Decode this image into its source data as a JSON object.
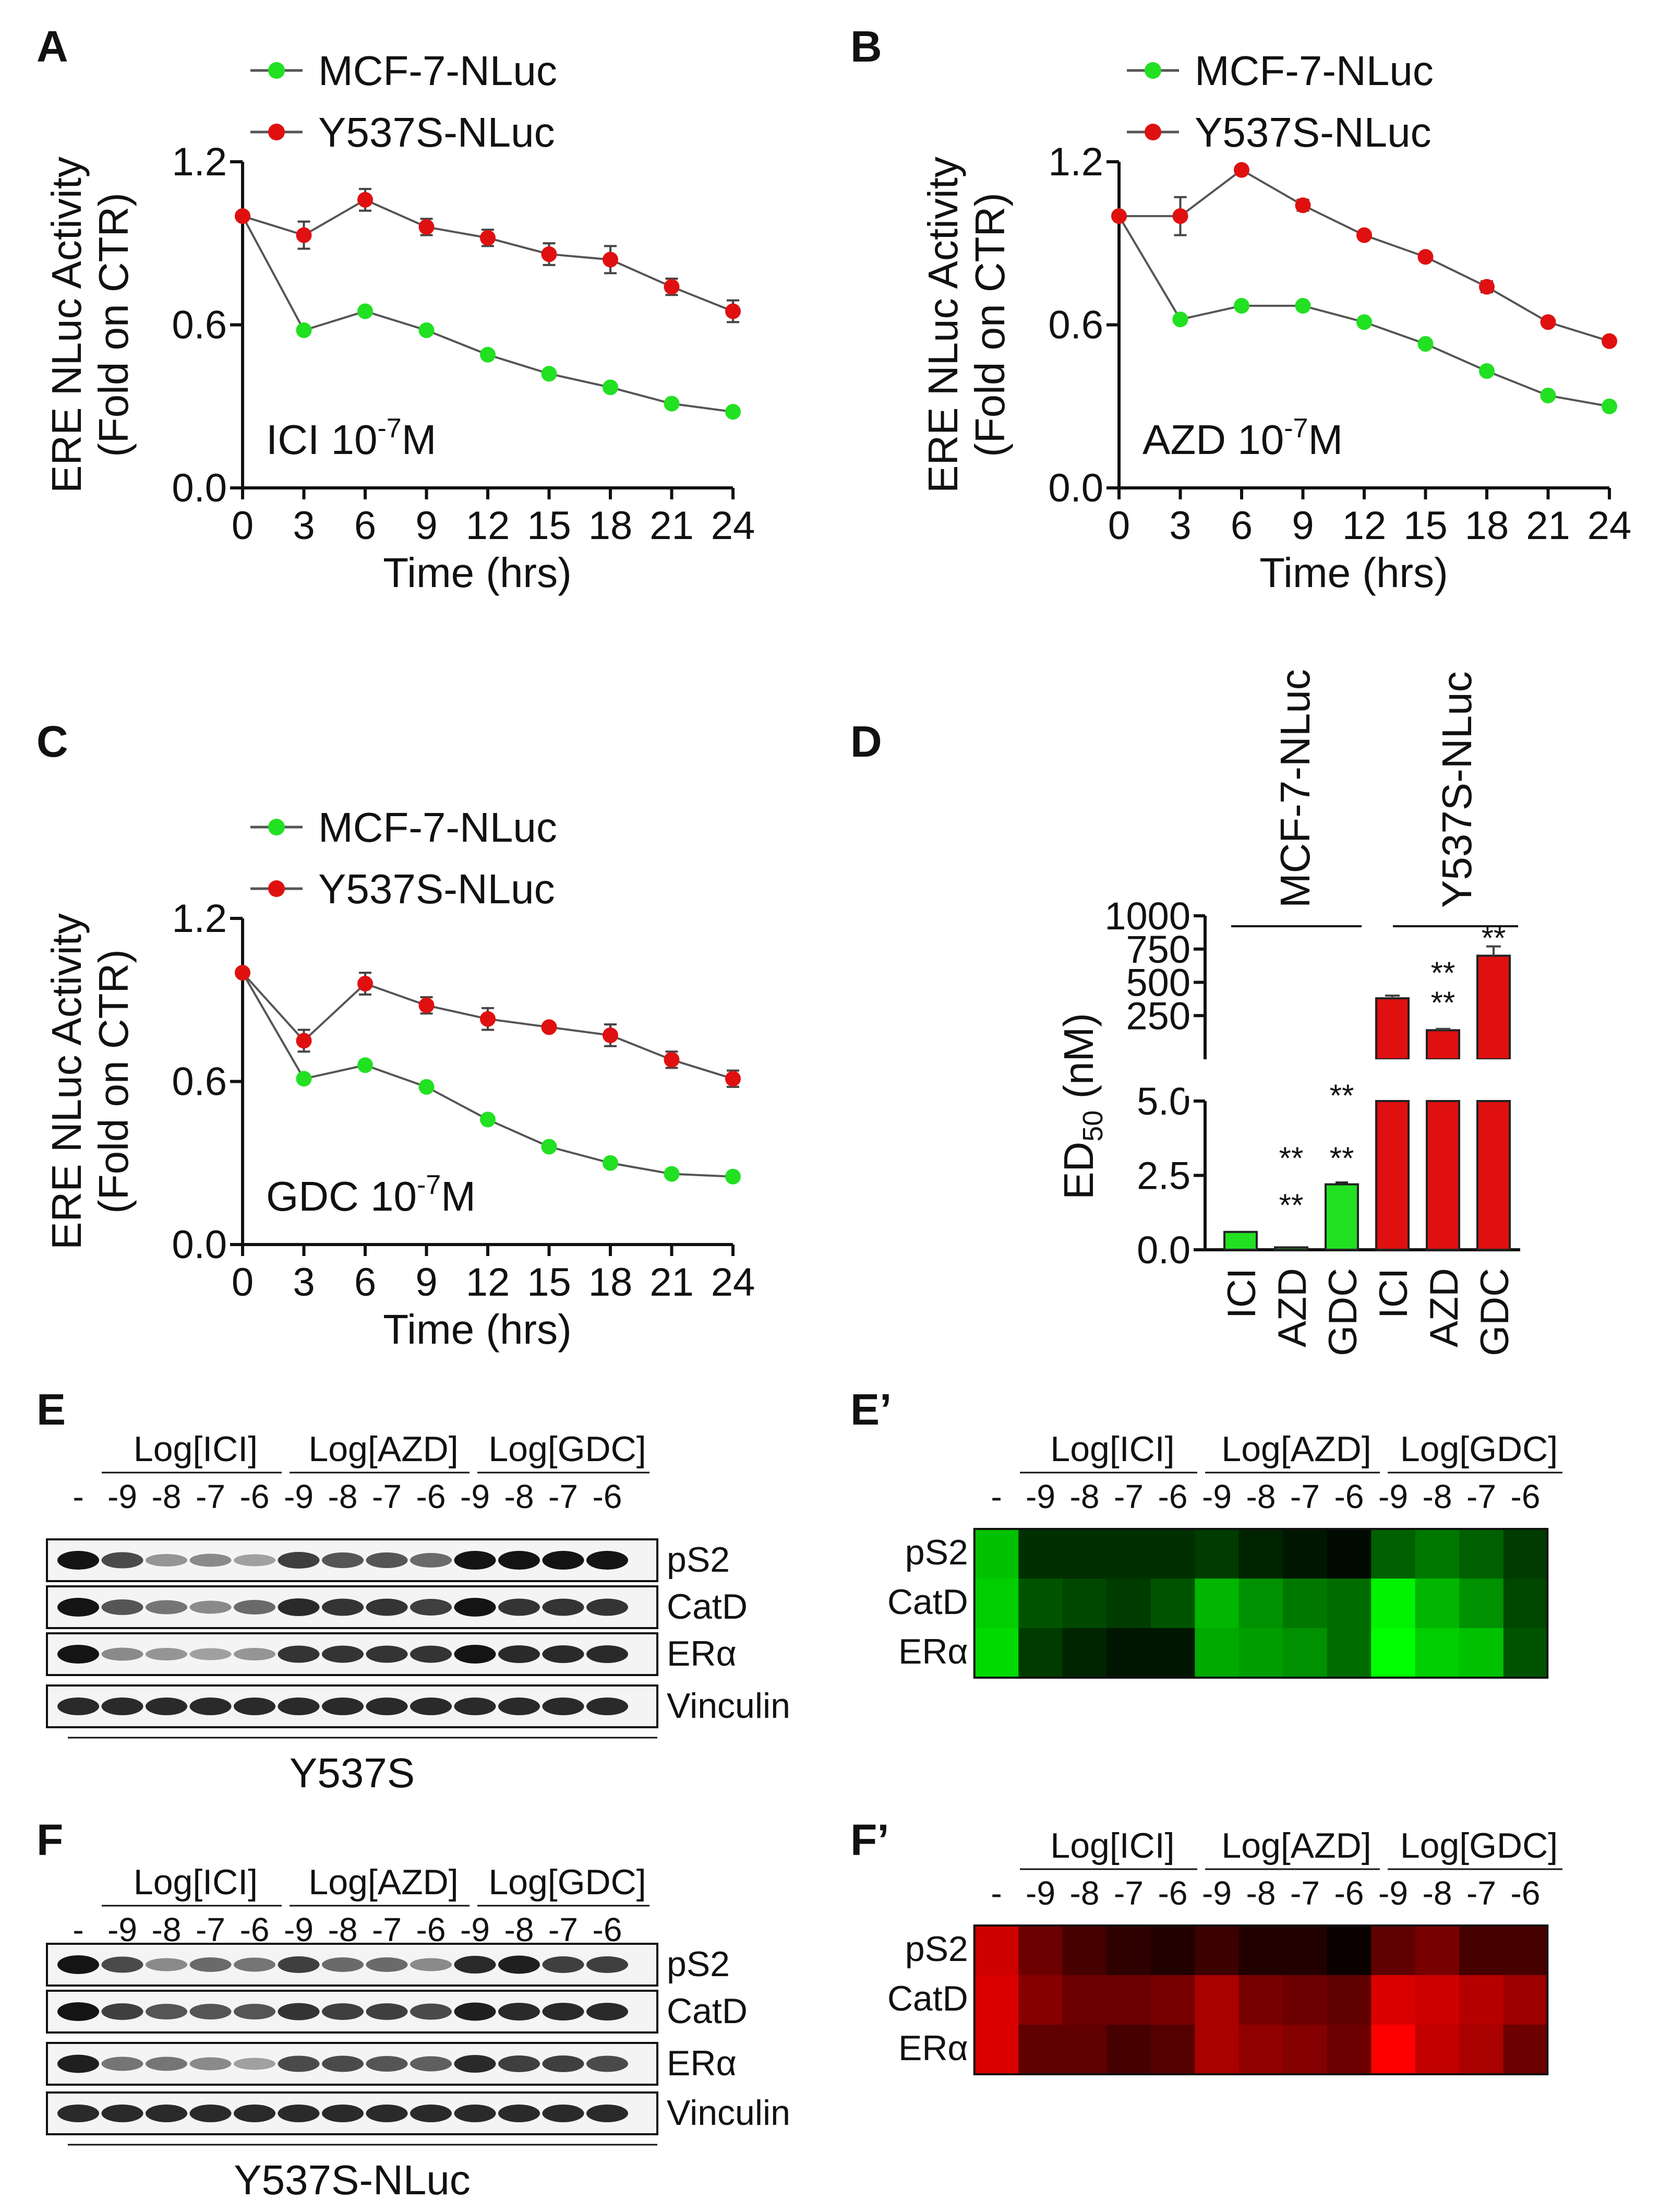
{
  "panel_letters": {
    "A": "A",
    "B": "B",
    "C": "C",
    "D": "D",
    "E": "E",
    "Ep": "E’",
    "F": "F",
    "Fp": "F’"
  },
  "colors": {
    "mcf7": "#22e022",
    "y537s": "#e01010",
    "line": "#555555",
    "axis": "#111111"
  },
  "chart_data": [
    {
      "id": "A",
      "type": "line",
      "ylabel_line1": "ERE NLuc Activity",
      "ylabel_line2": "(Fold on CTR)",
      "xlabel": "Time  (hrs)",
      "annotation": "ICI 10",
      "annotation_exp": "-7",
      "annotation_unit": "M",
      "x": [
        0,
        3,
        6,
        9,
        12,
        15,
        18,
        21,
        24
      ],
      "xticks": [
        "0",
        "3",
        "6",
        "9",
        "12",
        "15",
        "18",
        "21",
        "24"
      ],
      "ylim": [
        0,
        1.2
      ],
      "yticks": [
        "0.0",
        "0.6",
        "1.2"
      ],
      "series": [
        {
          "name": "MCF-7-NLuc",
          "values": [
            1.0,
            0.58,
            0.65,
            0.58,
            0.49,
            0.42,
            0.37,
            0.31,
            0.28
          ],
          "errors": [
            0,
            0.01,
            0.01,
            0.01,
            0.01,
            0.01,
            0.01,
            0.01,
            0.01
          ]
        },
        {
          "name": "Y537S-NLuc",
          "values": [
            1.0,
            0.93,
            1.06,
            0.96,
            0.92,
            0.86,
            0.84,
            0.74,
            0.65
          ],
          "errors": [
            0,
            0.05,
            0.04,
            0.03,
            0.03,
            0.04,
            0.05,
            0.03,
            0.04
          ]
        }
      ]
    },
    {
      "id": "B",
      "type": "line",
      "ylabel_line1": "ERE NLuc Activity",
      "ylabel_line2": "(Fold on CTR)",
      "xlabel": "Time  (hrs)",
      "annotation": "AZD 10",
      "annotation_exp": "-7",
      "annotation_unit": "M",
      "x": [
        0,
        3,
        6,
        9,
        12,
        15,
        18,
        21,
        24
      ],
      "xticks": [
        "0",
        "3",
        "6",
        "9",
        "12",
        "15",
        "18",
        "21",
        "24"
      ],
      "ylim": [
        0,
        1.2
      ],
      "yticks": [
        "0.0",
        "0.6",
        "1.2"
      ],
      "series": [
        {
          "name": "MCF-7-NLuc",
          "values": [
            1.0,
            0.62,
            0.67,
            0.67,
            0.61,
            0.53,
            0.43,
            0.34,
            0.3
          ],
          "errors": [
            0,
            0.01,
            0.01,
            0.01,
            0.01,
            0.01,
            0.01,
            0.01,
            0.01
          ]
        },
        {
          "name": "Y537S-NLuc",
          "values": [
            1.0,
            1.0,
            1.17,
            1.04,
            0.93,
            0.85,
            0.74,
            0.61,
            0.54
          ],
          "errors": [
            0,
            0.07,
            0.01,
            0.02,
            0.01,
            0.01,
            0.02,
            0.01,
            0.01
          ]
        }
      ]
    },
    {
      "id": "C",
      "type": "line",
      "ylabel_line1": "ERE NLuc Activity",
      "ylabel_line2": "(Fold on CTR)",
      "xlabel": "Time  (hrs)",
      "annotation": "GDC 10",
      "annotation_exp": "-7",
      "annotation_unit": "M",
      "x": [
        0,
        3,
        6,
        9,
        12,
        15,
        18,
        21,
        24
      ],
      "xticks": [
        "0",
        "3",
        "6",
        "9",
        "12",
        "15",
        "18",
        "21",
        "24"
      ],
      "ylim": [
        0,
        1.2
      ],
      "yticks": [
        "0.0",
        "0.6",
        "1.2"
      ],
      "series": [
        {
          "name": "MCF-7-NLuc",
          "values": [
            1.0,
            0.61,
            0.66,
            0.58,
            0.46,
            0.36,
            0.3,
            0.26,
            0.25
          ],
          "errors": [
            0,
            0.01,
            0.01,
            0.01,
            0.01,
            0.01,
            0.01,
            0.01,
            0.01
          ]
        },
        {
          "name": "Y537S-NLuc",
          "values": [
            1.0,
            0.75,
            0.96,
            0.88,
            0.83,
            0.8,
            0.77,
            0.68,
            0.61
          ],
          "errors": [
            0,
            0.04,
            0.04,
            0.03,
            0.04,
            0.01,
            0.04,
            0.03,
            0.03
          ]
        }
      ]
    },
    {
      "id": "D",
      "type": "bar",
      "ylabel": "ED",
      "ylabel_sub": "50",
      "ylabel_unit": " (nM)",
      "categories": [
        "ICI",
        "AZD",
        "GDC",
        "ICI",
        "AZD",
        "GDC"
      ],
      "groups": [
        "MCF-7-NLuc",
        "MCF-7-NLuc",
        "MCF-7-NLuc",
        "Y537S-NLuc",
        "Y537S-NLuc",
        "Y537S-NLuc"
      ],
      "group_labels": [
        "MCF-7-NLuc",
        "Y537S-NLuc"
      ],
      "values": [
        0.6,
        0.08,
        2.2,
        380,
        140,
        700
      ],
      "errors": [
        0.02,
        0.02,
        0.06,
        20,
        10,
        70
      ],
      "significance": [
        [
          "",
          ""
        ],
        [
          "**",
          "**"
        ],
        [
          "**",
          "**"
        ],
        [
          "",
          ""
        ],
        [
          "**",
          "**"
        ],
        [
          "",
          ""
        ]
      ],
      "significance_top": [
        "",
        "",
        "",
        "",
        "",
        "**"
      ],
      "lower_axis": {
        "ylim": [
          0,
          5
        ],
        "yticks": [
          "0.0",
          "2.5",
          "5.0"
        ]
      },
      "upper_axis": {
        "ylim": [
          0,
          1000
        ],
        "yticks": [
          "250",
          "500",
          "750",
          "1000"
        ]
      }
    }
  ],
  "blots": {
    "E": {
      "groups": [
        "Log[ICI]",
        "Log[AZD]",
        "Log[GDC]"
      ],
      "lanes": [
        "-",
        "-9",
        "-8",
        "-7",
        "-6",
        "-9",
        "-8",
        "-7",
        "-6",
        "-9",
        "-8",
        "-7",
        "-6"
      ],
      "proteins": [
        "pS2",
        "CatD",
        "ERα",
        "Vinculin"
      ],
      "caption": "Y537S",
      "intensity": [
        [
          1.0,
          0.75,
          0.4,
          0.45,
          0.35,
          0.8,
          0.7,
          0.7,
          0.6,
          1.0,
          1.0,
          1.0,
          1.0
        ],
        [
          1.0,
          0.7,
          0.55,
          0.45,
          0.6,
          0.9,
          0.85,
          0.85,
          0.8,
          1.0,
          0.85,
          0.85,
          0.85
        ],
        [
          1.0,
          0.45,
          0.4,
          0.35,
          0.4,
          0.85,
          0.85,
          0.85,
          0.85,
          1.0,
          0.9,
          0.9,
          0.9
        ],
        [
          0.9,
          0.9,
          0.9,
          0.9,
          0.9,
          0.9,
          0.9,
          0.9,
          0.9,
          0.9,
          0.9,
          0.9,
          0.9
        ]
      ]
    },
    "F": {
      "groups": [
        "Log[ICI]",
        "Log[AZD]",
        "Log[GDC]"
      ],
      "lanes": [
        "-",
        "-9",
        "-8",
        "-7",
        "-6",
        "-9",
        "-8",
        "-7",
        "-6",
        "-9",
        "-8",
        "-7",
        "-6"
      ],
      "proteins": [
        "pS2",
        "CatD",
        "ERα",
        "Vinculin"
      ],
      "caption": "Y537S-NLuc",
      "intensity": [
        [
          1.0,
          0.75,
          0.45,
          0.6,
          0.55,
          0.8,
          0.6,
          0.6,
          0.45,
          0.9,
          0.95,
          0.8,
          0.8
        ],
        [
          1.0,
          0.8,
          0.7,
          0.7,
          0.7,
          0.85,
          0.8,
          0.8,
          0.75,
          0.95,
          0.9,
          0.9,
          0.9
        ],
        [
          0.95,
          0.55,
          0.55,
          0.45,
          0.35,
          0.75,
          0.75,
          0.7,
          0.65,
          0.9,
          0.8,
          0.8,
          0.75
        ],
        [
          0.9,
          0.9,
          0.9,
          0.9,
          0.9,
          0.9,
          0.9,
          0.9,
          0.9,
          0.9,
          0.9,
          0.9,
          0.9
        ]
      ]
    }
  },
  "heatmaps": {
    "Ep": {
      "color": "green",
      "groups": [
        "Log[ICI]",
        "Log[AZD]",
        "Log[GDC]"
      ],
      "lanes": [
        "-",
        "-9",
        "-8",
        "-7",
        "-6",
        "-9",
        "-8",
        "-7",
        "-6",
        "-9",
        "-8",
        "-7",
        "-6"
      ],
      "rows": [
        "pS2",
        "CatD",
        "ERα"
      ],
      "values": [
        [
          0.75,
          0.15,
          0.15,
          0.15,
          0.15,
          0.2,
          0.1,
          0.05,
          0.0,
          0.35,
          0.45,
          0.35,
          0.2
        ],
        [
          0.8,
          0.3,
          0.25,
          0.2,
          0.3,
          0.7,
          0.55,
          0.45,
          0.4,
          0.95,
          0.7,
          0.55,
          0.25
        ],
        [
          0.85,
          0.2,
          0.1,
          0.05,
          0.05,
          0.65,
          0.6,
          0.55,
          0.4,
          1.0,
          0.8,
          0.75,
          0.3
        ]
      ]
    },
    "Fp": {
      "color": "red",
      "groups": [
        "Log[ICI]",
        "Log[AZD]",
        "Log[GDC]"
      ],
      "lanes": [
        "-",
        "-9",
        "-8",
        "-7",
        "-6",
        "-9",
        "-8",
        "-7",
        "-6",
        "-9",
        "-8",
        "-7",
        "-6"
      ],
      "rows": [
        "pS2",
        "CatD",
        "ERα"
      ],
      "values": [
        [
          0.8,
          0.4,
          0.25,
          0.15,
          0.1,
          0.2,
          0.1,
          0.1,
          0.0,
          0.35,
          0.45,
          0.25,
          0.25
        ],
        [
          0.85,
          0.5,
          0.4,
          0.4,
          0.45,
          0.65,
          0.45,
          0.4,
          0.35,
          0.85,
          0.8,
          0.7,
          0.6
        ],
        [
          0.85,
          0.35,
          0.35,
          0.25,
          0.3,
          0.65,
          0.55,
          0.5,
          0.4,
          1.0,
          0.75,
          0.65,
          0.4
        ]
      ]
    }
  }
}
